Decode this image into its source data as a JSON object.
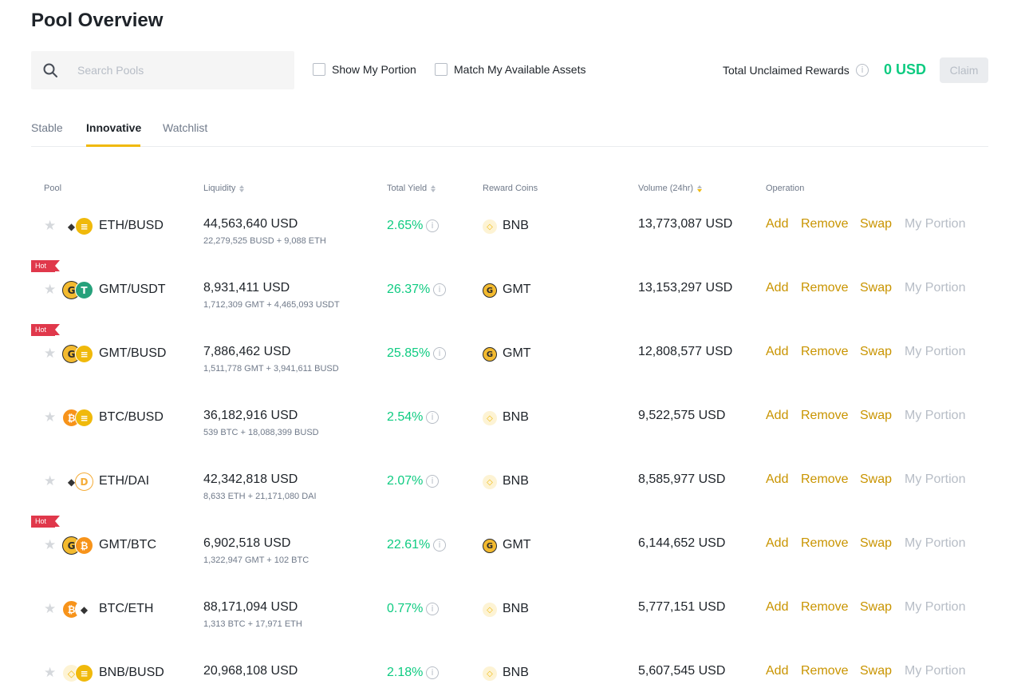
{
  "page": {
    "title": "Pool Overview"
  },
  "search": {
    "placeholder": "Search Pools"
  },
  "filters": {
    "show_my_portion": "Show My Portion",
    "match_assets": "Match My Available Assets"
  },
  "rewards": {
    "label": "Total Unclaimed Rewards",
    "value": "0 USD",
    "claim_label": "Claim"
  },
  "tabs": [
    {
      "label": "Stable"
    },
    {
      "label": "Innovative",
      "active": true
    },
    {
      "label": "Watchlist"
    }
  ],
  "columns": {
    "pool": "Pool",
    "liquidity": "Liquidity",
    "total_yield": "Total Yield",
    "reward_coins": "Reward Coins",
    "volume": "Volume (24hr)",
    "operation": "Operation"
  },
  "operations": {
    "add": "Add",
    "remove": "Remove",
    "swap": "Swap",
    "my_portion": "My Portion"
  },
  "hot_label": "Hot",
  "colors": {
    "accent": "#f0b90b",
    "link": "#c99400",
    "positive": "#0ecb81",
    "hot": "#e0384b"
  },
  "rows": [
    {
      "pair": "ETH/BUSD",
      "hot": false,
      "coin1": "eth",
      "coin2": "busd",
      "liquidity": "44,563,640 USD",
      "liquidity_sub": "22,279,525 BUSD + 9,088 ETH",
      "yield": "2.65%",
      "reward": "BNB",
      "reward_icon": "bnb",
      "volume": "13,773,087 USD"
    },
    {
      "pair": "GMT/USDT",
      "hot": true,
      "coin1": "gmt",
      "coin2": "usdt",
      "liquidity": "8,931,411 USD",
      "liquidity_sub": "1,712,309 GMT + 4,465,093 USDT",
      "yield": "26.37%",
      "reward": "GMT",
      "reward_icon": "gmt",
      "volume": "13,153,297 USD"
    },
    {
      "pair": "GMT/BUSD",
      "hot": true,
      "coin1": "gmt",
      "coin2": "busd",
      "liquidity": "7,886,462 USD",
      "liquidity_sub": "1,511,778 GMT + 3,941,611 BUSD",
      "yield": "25.85%",
      "reward": "GMT",
      "reward_icon": "gmt",
      "volume": "12,808,577 USD"
    },
    {
      "pair": "BTC/BUSD",
      "hot": false,
      "coin1": "btc",
      "coin2": "busd",
      "liquidity": "36,182,916 USD",
      "liquidity_sub": "539 BTC + 18,088,399 BUSD",
      "yield": "2.54%",
      "reward": "BNB",
      "reward_icon": "bnb",
      "volume": "9,522,575 USD"
    },
    {
      "pair": "ETH/DAI",
      "hot": false,
      "coin1": "eth",
      "coin2": "dai",
      "liquidity": "42,342,818 USD",
      "liquidity_sub": "8,633 ETH + 21,171,080 DAI",
      "yield": "2.07%",
      "reward": "BNB",
      "reward_icon": "bnb",
      "volume": "8,585,977 USD"
    },
    {
      "pair": "GMT/BTC",
      "hot": true,
      "coin1": "gmt",
      "coin2": "btc",
      "liquidity": "6,902,518 USD",
      "liquidity_sub": "1,322,947 GMT + 102 BTC",
      "yield": "22.61%",
      "reward": "GMT",
      "reward_icon": "gmt",
      "volume": "6,144,652 USD"
    },
    {
      "pair": "BTC/ETH",
      "hot": false,
      "coin1": "btc",
      "coin2": "eth",
      "liquidity": "88,171,094 USD",
      "liquidity_sub": "1,313 BTC + 17,971 ETH",
      "yield": "0.77%",
      "reward": "BNB",
      "reward_icon": "bnb",
      "volume": "5,777,151 USD"
    },
    {
      "pair": "BNB/BUSD",
      "hot": false,
      "coin1": "bnb",
      "coin2": "busd",
      "liquidity": "20,968,108 USD",
      "liquidity_sub": "",
      "yield": "2.18%",
      "reward": "BNB",
      "reward_icon": "bnb",
      "volume": "5,607,545 USD"
    }
  ]
}
